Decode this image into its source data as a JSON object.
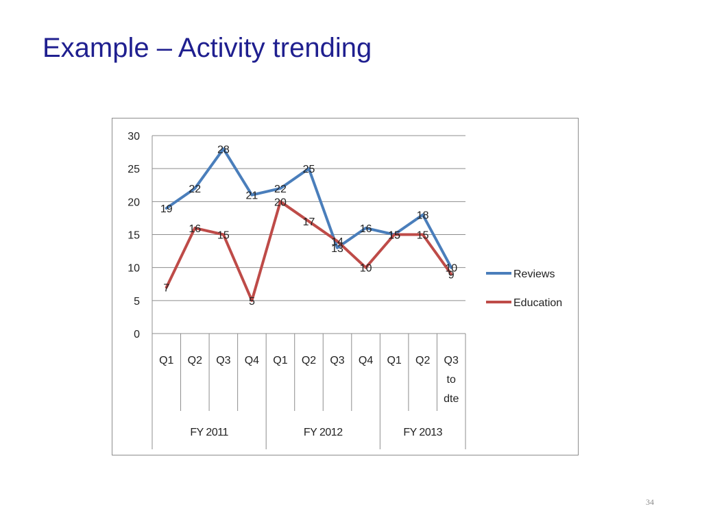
{
  "slide": {
    "title": "Example – Activity trending",
    "page_number": "34"
  },
  "chart_data": {
    "type": "line",
    "categories": [
      "Q1",
      "Q2",
      "Q3",
      "Q4",
      "Q1",
      "Q2",
      "Q3",
      "Q4",
      "Q1",
      "Q2",
      "Q3 to dte"
    ],
    "category_lines": [
      [
        "Q1"
      ],
      [
        "Q2"
      ],
      [
        "Q3"
      ],
      [
        "Q4"
      ],
      [
        "Q1"
      ],
      [
        "Q2"
      ],
      [
        "Q3"
      ],
      [
        "Q4"
      ],
      [
        "Q1"
      ],
      [
        "Q2"
      ],
      [
        "Q3",
        "to",
        "dte"
      ]
    ],
    "groups": [
      {
        "label": "FY 2011",
        "start": 0,
        "end": 3
      },
      {
        "label": "FY 2012",
        "start": 4,
        "end": 7
      },
      {
        "label": "FY 2013",
        "start": 8,
        "end": 10
      }
    ],
    "series": [
      {
        "name": "Reviews",
        "color": "#4a7ebb",
        "values": [
          19,
          22,
          28,
          21,
          22,
          25,
          13,
          16,
          15,
          18,
          10
        ]
      },
      {
        "name": "Education",
        "color": "#be4b48",
        "values": [
          7,
          16,
          15,
          5,
          20,
          17,
          14,
          10,
          15,
          15,
          9
        ]
      }
    ],
    "ylim": [
      0,
      30
    ],
    "yticks": [
      0,
      5,
      10,
      15,
      20,
      25,
      30
    ],
    "grid": true,
    "legend": "right",
    "data_labels": true
  }
}
